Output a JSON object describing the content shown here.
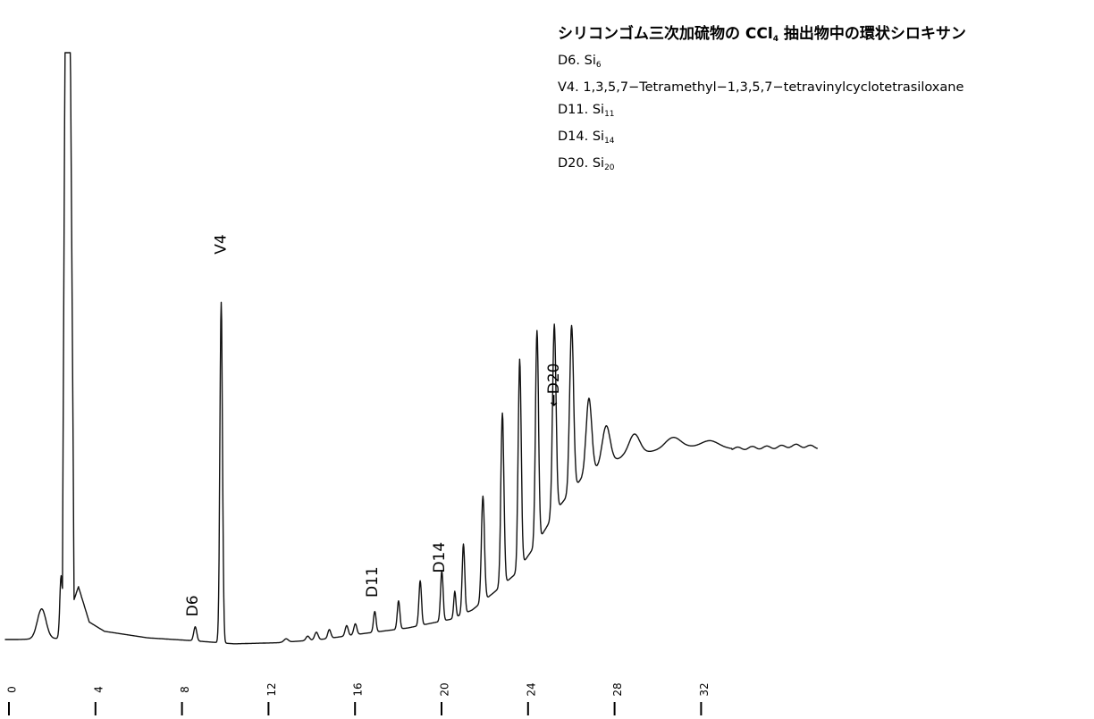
{
  "chart_data": {
    "type": "line",
    "title": {
      "prefix": "シリコンゴム三次加硫物の CCl",
      "sub": "4",
      "suffix": " 抽出物中の環状シロキサン"
    },
    "legend": [
      {
        "prefix": "D6. Si",
        "sub": "6"
      },
      {
        "prefix": "V4. 1,3,5,7−Tetramethyl−1,3,5,7−tetravinylcyclotetrasiloxane",
        "sub": ""
      },
      {
        "prefix": "D11. Si",
        "sub": "11"
      },
      {
        "prefix": "D14. Si",
        "sub": "14"
      },
      {
        "prefix": "D20. Si",
        "sub": "20"
      }
    ],
    "xlabel": "",
    "ylabel": "",
    "x_ticks": [
      "0",
      "4",
      "8",
      "12",
      "16",
      "20",
      "24",
      "28",
      "32"
    ],
    "xlim": [
      -0.6,
      37
    ],
    "ylim": [
      0,
      100
    ],
    "baseline": [
      [
        -0.6,
        2.3
      ],
      [
        0,
        2.3
      ],
      [
        2,
        2.5
      ],
      [
        2.8,
        12
      ],
      [
        3.3,
        5.5
      ],
      [
        4,
        3.8
      ],
      [
        6,
        2.6
      ],
      [
        8,
        2.1
      ],
      [
        10,
        1.5
      ],
      [
        12,
        1.7
      ],
      [
        14,
        2.3
      ],
      [
        16,
        3.4
      ],
      [
        18,
        4.4
      ],
      [
        20,
        6.0
      ],
      [
        21,
        7.7
      ],
      [
        22,
        10.9
      ],
      [
        23,
        14.3
      ],
      [
        24,
        20
      ],
      [
        25,
        26.6
      ],
      [
        26,
        31.5
      ],
      [
        27,
        34.2
      ],
      [
        28,
        35.8
      ],
      [
        29,
        36.6
      ],
      [
        30,
        37.3
      ],
      [
        31,
        37.6
      ],
      [
        32,
        37.6
      ],
      [
        33,
        37.3
      ],
      [
        34,
        37.5
      ],
      [
        35,
        37.6
      ],
      [
        36,
        37.9
      ],
      [
        37,
        37.6
      ]
    ],
    "peaks": [
      {
        "x": 1.1,
        "h": 5.5,
        "w": 0.2
      },
      {
        "x": 2.0,
        "h": 11.5,
        "w": 0.06
      },
      {
        "x": 8.2,
        "h": 2.6,
        "w": 0.07
      },
      {
        "x": 9.4,
        "h": 62.5,
        "w": 0.06
      },
      {
        "x": 12.4,
        "h": 0.6,
        "w": 0.1
      },
      {
        "x": 13.4,
        "h": 0.8,
        "w": 0.08
      },
      {
        "x": 13.8,
        "h": 1.4,
        "w": 0.08
      },
      {
        "x": 14.4,
        "h": 1.6,
        "w": 0.07
      },
      {
        "x": 15.2,
        "h": 1.9,
        "w": 0.07
      },
      {
        "x": 15.6,
        "h": 2.0,
        "w": 0.07
      },
      {
        "x": 16.5,
        "h": 3.8,
        "w": 0.06
      },
      {
        "x": 17.6,
        "h": 5.2,
        "w": 0.06
      },
      {
        "x": 18.6,
        "h": 8.2,
        "w": 0.06
      },
      {
        "x": 19.6,
        "h": 9.2,
        "w": 0.06
      },
      {
        "x": 20.2,
        "h": 4.8,
        "w": 0.05
      },
      {
        "x": 20.6,
        "h": 12.8,
        "w": 0.06
      },
      {
        "x": 21.5,
        "h": 19.3,
        "w": 0.07
      },
      {
        "x": 22.4,
        "h": 31.6,
        "w": 0.07
      },
      {
        "x": 23.2,
        "h": 38.3,
        "w": 0.07
      },
      {
        "x": 24.0,
        "h": 39.0,
        "w": 0.07
      },
      {
        "x": 24.8,
        "h": 34.9,
        "w": 0.08
      },
      {
        "x": 25.6,
        "h": 30.4,
        "w": 0.09
      },
      {
        "x": 26.4,
        "h": 14.0,
        "w": 0.13
      },
      {
        "x": 27.2,
        "h": 7.0,
        "w": 0.18
      },
      {
        "x": 28.5,
        "h": 3.8,
        "w": 0.25
      },
      {
        "x": 30.3,
        "h": 2.0,
        "w": 0.35
      },
      {
        "x": 32.0,
        "h": 1.2,
        "w": 0.4
      }
    ],
    "solvent_peak": {
      "x": 2.3,
      "top": 110
    },
    "annotations": [
      {
        "text": "D6",
        "x": 8.1,
        "y": 6.5
      },
      {
        "text": "V4",
        "x": 9.4,
        "y": 73
      },
      {
        "text": "D11",
        "x": 16.4,
        "y": 10
      },
      {
        "text": "D14",
        "x": 19.5,
        "y": 14.5
      },
      {
        "text": "←D20",
        "x": 24.8,
        "y": 45
      }
    ]
  }
}
